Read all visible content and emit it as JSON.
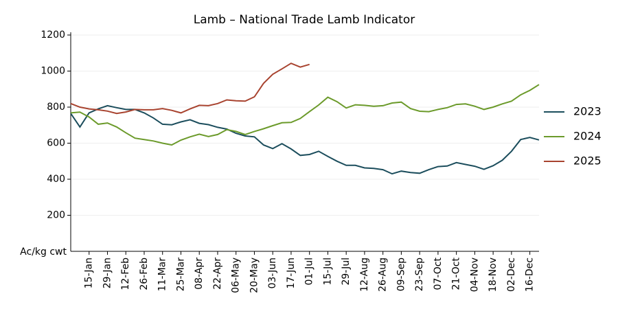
{
  "chart_data": {
    "type": "line",
    "title": "Lamb – National Trade Lamb Indicator",
    "y_label": "Ac/kg cwt",
    "categories": [
      null,
      null,
      "15-Jan",
      null,
      "29-Jan",
      null,
      "12-Feb",
      null,
      "26-Feb",
      null,
      "11-Mar",
      null,
      "25-Mar",
      null,
      "08-Apr",
      null,
      "22-Apr",
      null,
      "06-May",
      null,
      "20-May",
      null,
      "03-Jun",
      null,
      "17-Jun",
      null,
      "01-Jul",
      null,
      "15-Jul",
      null,
      "29-Jul",
      null,
      "12-Aug",
      null,
      "26-Aug",
      null,
      "09-Sep",
      null,
      "23-Sep",
      null,
      "07-Oct",
      null,
      "21-Oct",
      null,
      "04-Nov",
      null,
      "18-Nov",
      null,
      "02-Dec",
      null,
      "16-Dec",
      null
    ],
    "series": [
      {
        "name": "2023",
        "color": "#1b4d5c",
        "values": [
          765,
          690,
          768,
          790,
          808,
          797,
          787,
          787,
          768,
          740,
          705,
          702,
          718,
          730,
          710,
          703,
          688,
          678,
          655,
          640,
          635,
          590,
          570,
          597,
          568,
          532,
          537,
          555,
          527,
          500,
          477,
          477,
          463,
          460,
          453,
          430,
          445,
          437,
          433,
          453,
          470,
          473,
          492,
          482,
          472,
          455,
          475,
          505,
          555,
          620,
          632,
          618
        ]
      },
      {
        "name": "2024",
        "color": "#6b9a2a",
        "values": [
          768,
          772,
          745,
          705,
          712,
          690,
          658,
          628,
          620,
          612,
          600,
          590,
          617,
          635,
          650,
          637,
          648,
          675,
          665,
          648,
          665,
          680,
          697,
          713,
          715,
          737,
          775,
          812,
          855,
          830,
          795,
          813,
          810,
          805,
          808,
          823,
          828,
          792,
          777,
          775,
          787,
          797,
          815,
          818,
          805,
          787,
          800,
          818,
          833,
          868,
          893,
          925
        ]
      },
      {
        "name": "2025",
        "color": "#a8432f",
        "values": [
          820,
          800,
          790,
          785,
          778,
          765,
          773,
          787,
          785,
          785,
          792,
          782,
          768,
          790,
          810,
          808,
          820,
          840,
          835,
          833,
          857,
          932,
          982,
          1012,
          1043,
          1022,
          1037,
          null,
          null,
          null,
          null,
          null,
          null,
          null,
          null,
          null,
          null,
          null,
          null,
          null,
          null,
          null,
          null,
          null,
          null,
          null,
          null,
          null,
          null,
          null,
          null,
          null
        ]
      }
    ],
    "ylim": [
      0,
      1200
    ],
    "yticks": [
      200,
      400,
      600,
      800,
      1000,
      1200
    ],
    "grid": true,
    "legend": "right"
  }
}
